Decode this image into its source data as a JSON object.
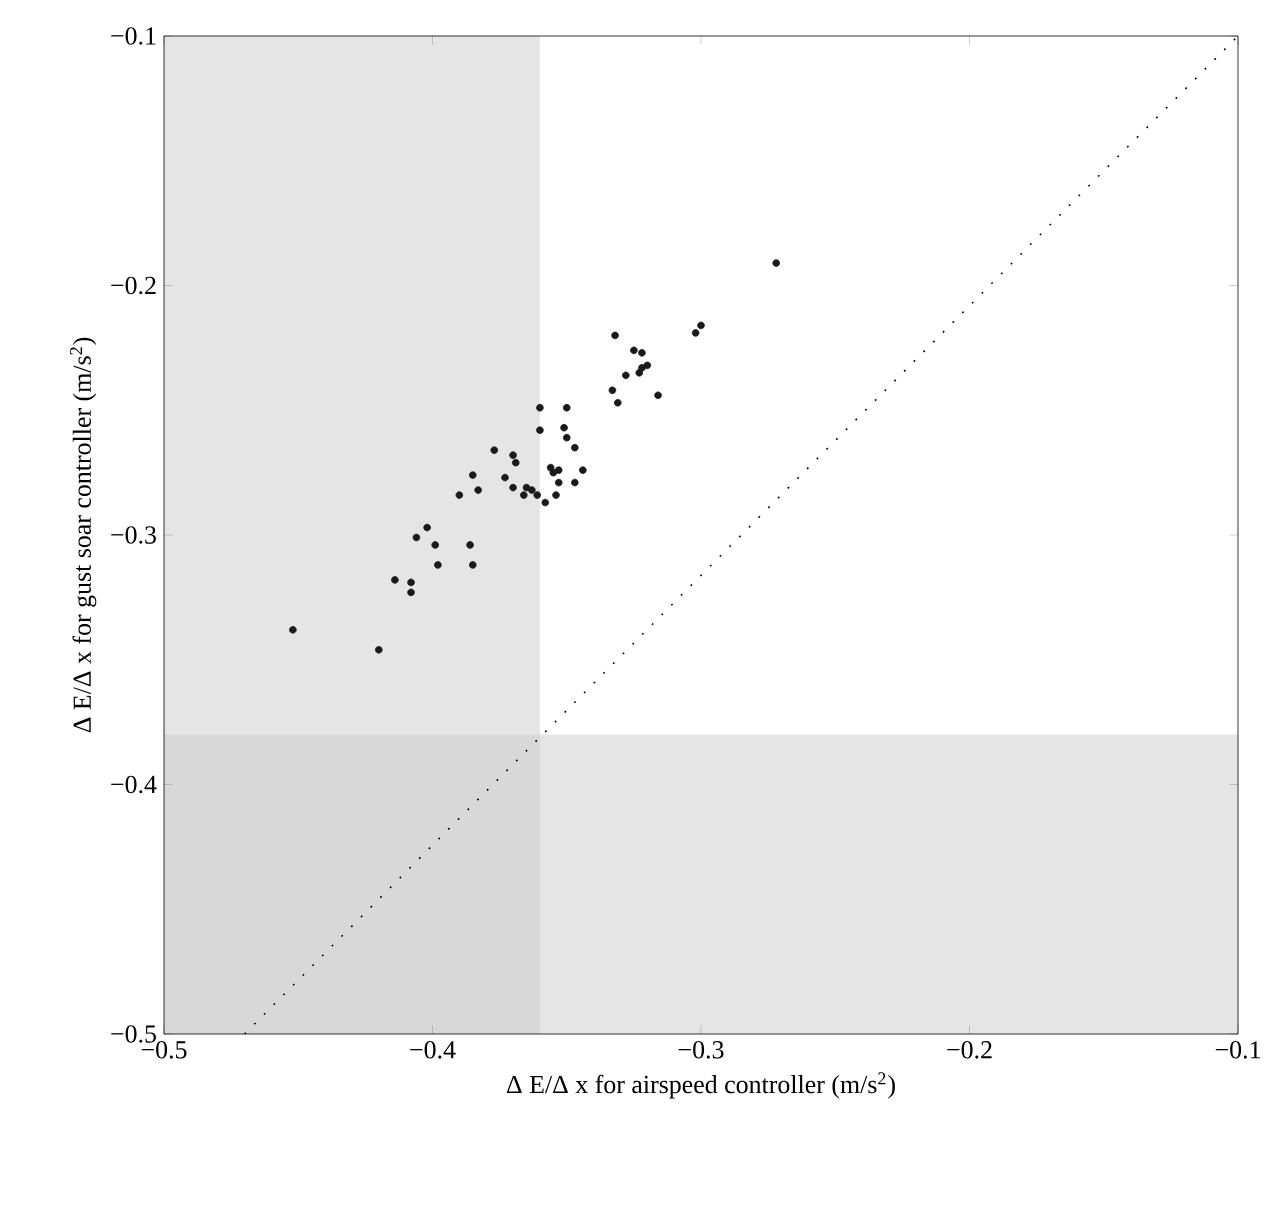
{
  "chart_data": {
    "type": "scatter",
    "xlabel": "Δ E/Δ x for airspeed controller (m/s$^{2}$)",
    "ylabel": "Δ E/Δ x for gust soar controller (m/s$^{2}$)",
    "xlim": [
      -0.5,
      -0.1
    ],
    "ylim": [
      -0.5,
      -0.1
    ],
    "xticks": [
      {
        "value": -0.5,
        "label": "−0.5"
      },
      {
        "value": -0.4,
        "label": "−0.4"
      },
      {
        "value": -0.3,
        "label": "−0.3"
      },
      {
        "value": -0.2,
        "label": "−0.2"
      },
      {
        "value": -0.1,
        "label": "−0.1"
      }
    ],
    "yticks": [
      {
        "value": -0.5,
        "label": "−0.5"
      },
      {
        "value": -0.4,
        "label": "−0.4"
      },
      {
        "value": -0.3,
        "label": "−0.3"
      },
      {
        "value": -0.2,
        "label": "−0.2"
      },
      {
        "value": -0.1,
        "label": "−0.1"
      }
    ],
    "grid": false,
    "marker": "circle",
    "bands": [
      {
        "axis": "x",
        "from": -0.5,
        "to": -0.36,
        "color": "#cccccc"
      },
      {
        "axis": "y",
        "from": -0.5,
        "to": -0.38,
        "color": "#cccccc"
      }
    ],
    "series": [
      {
        "color": "#1a1a1a",
        "x": [
          -0.452,
          -0.42,
          -0.414,
          -0.408,
          -0.408,
          -0.406,
          -0.402,
          -0.399,
          -0.398,
          -0.386,
          -0.385,
          -0.39,
          -0.385,
          -0.383,
          -0.377,
          -0.37,
          -0.369,
          -0.373,
          -0.37,
          -0.366,
          -0.365,
          -0.363,
          -0.361,
          -0.358,
          -0.36,
          -0.36,
          -0.35,
          -0.351,
          -0.35,
          -0.347,
          -0.356,
          -0.355,
          -0.353,
          -0.344,
          -0.353,
          -0.347,
          -0.354,
          -0.333,
          -0.331,
          -0.328,
          -0.332,
          -0.325,
          -0.322,
          -0.323,
          -0.322,
          -0.32,
          -0.316,
          -0.302,
          -0.3,
          -0.272
        ],
        "values": [
          -0.338,
          -0.346,
          -0.318,
          -0.319,
          -0.323,
          -0.301,
          -0.297,
          -0.304,
          -0.312,
          -0.304,
          -0.312,
          -0.284,
          -0.276,
          -0.282,
          -0.266,
          -0.268,
          -0.271,
          -0.277,
          -0.281,
          -0.284,
          -0.281,
          -0.282,
          -0.284,
          -0.287,
          -0.249,
          -0.258,
          -0.249,
          -0.257,
          -0.261,
          -0.265,
          -0.273,
          -0.275,
          -0.274,
          -0.274,
          -0.279,
          -0.279,
          -0.284,
          -0.242,
          -0.247,
          -0.236,
          -0.22,
          -0.226,
          -0.227,
          -0.235,
          -0.233,
          -0.232,
          -0.244,
          -0.219,
          -0.216,
          -0.191
        ]
      },
      {
        "type": "line",
        "color": "#000000",
        "line_style": "dotted",
        "marker": "none",
        "x": [
          -0.47,
          -0.1
        ],
        "values": [
          -0.5,
          -0.1
        ]
      }
    ]
  }
}
